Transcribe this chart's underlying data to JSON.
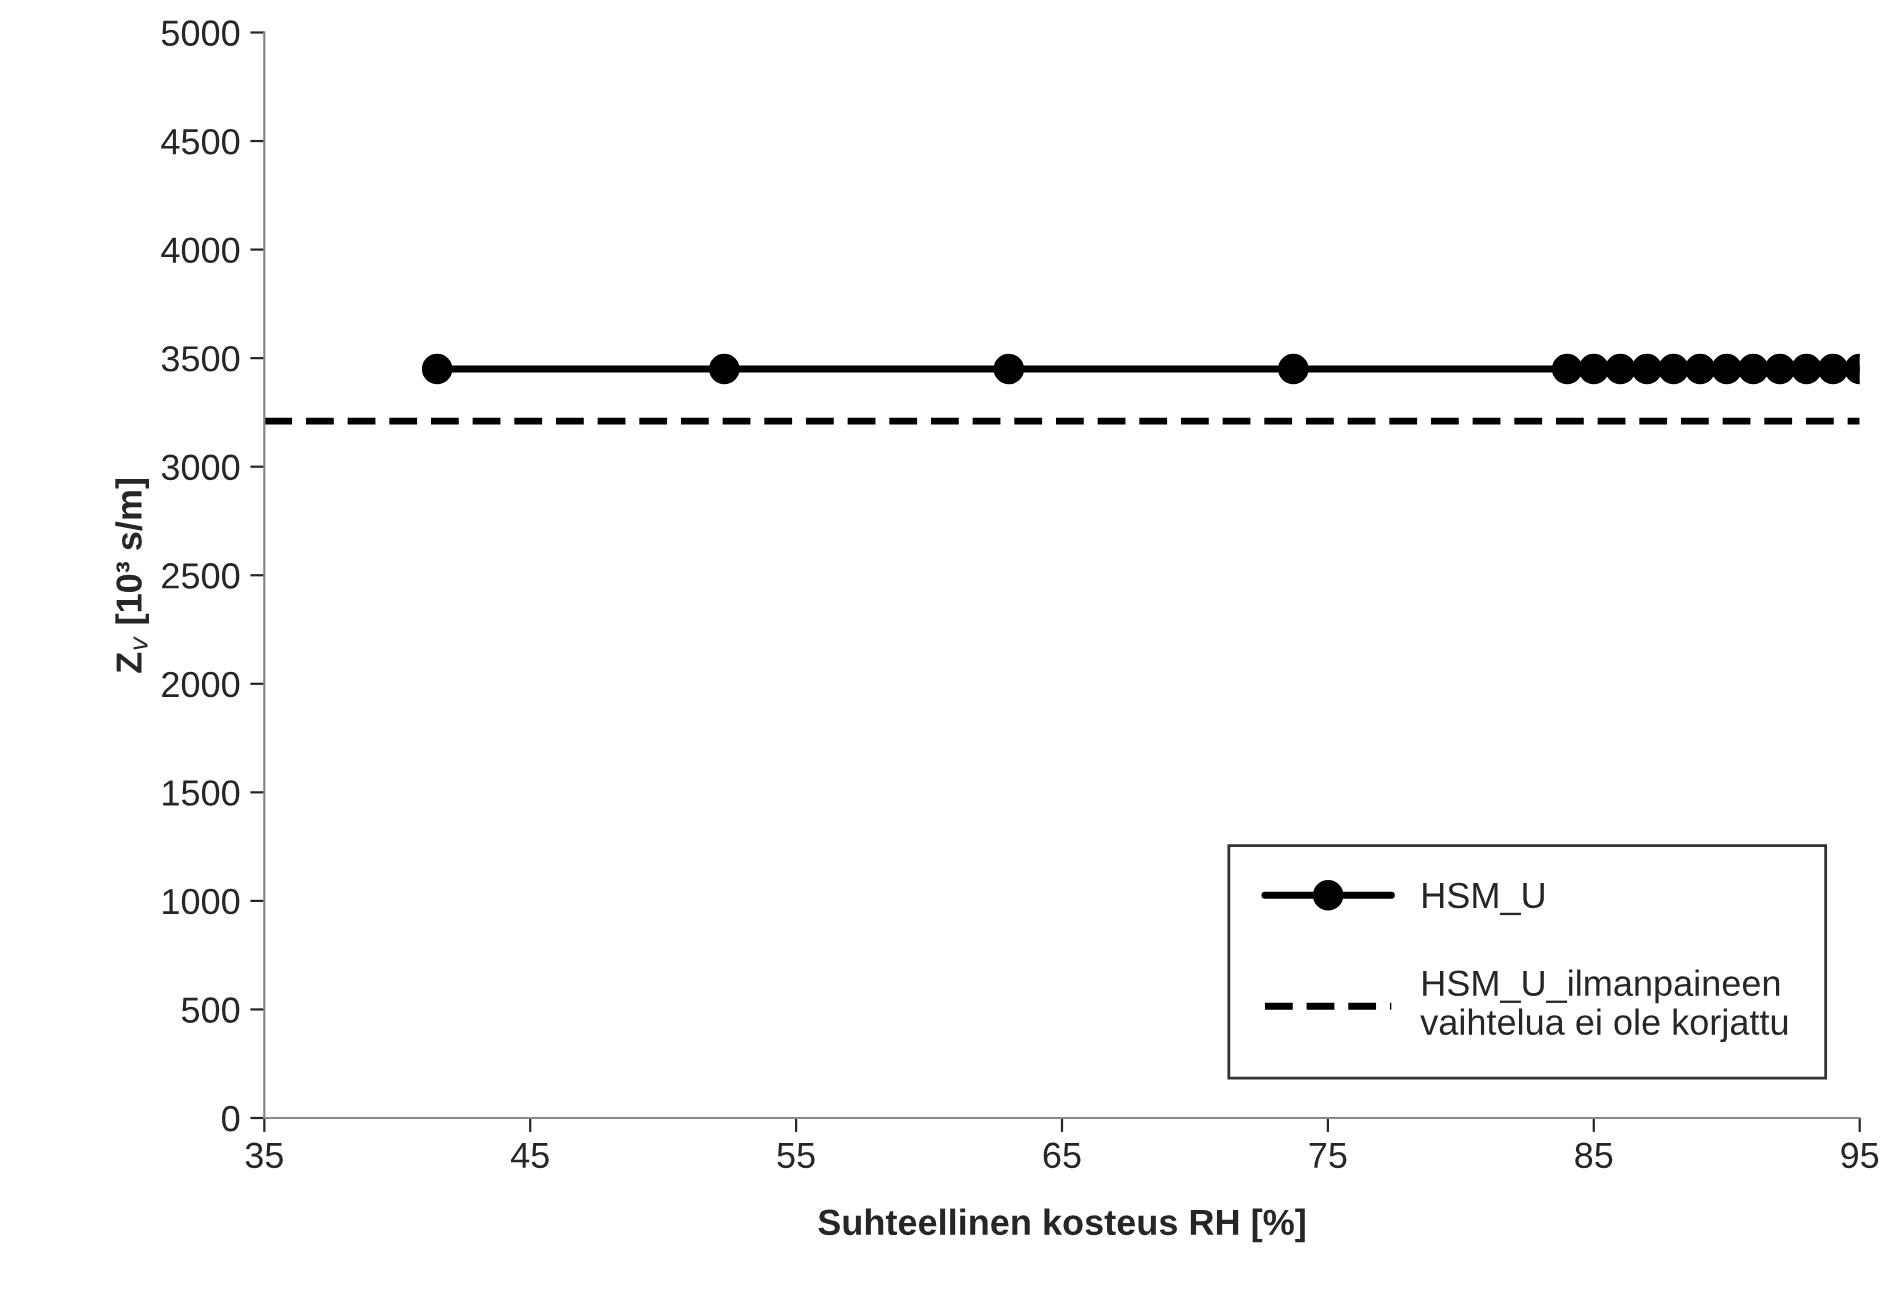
{
  "chart_data": {
    "type": "line",
    "xlabel": "Suhteellinen kosteus RH [%]",
    "ylabel": "Z$_{v}$ [10³ s/m]",
    "xlim": [
      35,
      95
    ],
    "xticks": [
      35,
      45,
      55,
      65,
      75,
      85,
      95
    ],
    "ylim": [
      0,
      5000
    ],
    "yticks": [
      0,
      500,
      1000,
      1500,
      2000,
      2500,
      3000,
      3500,
      4000,
      4500,
      5000
    ],
    "grid": false,
    "legend": "bottom right",
    "series": [
      {
        "name": "HSM_U",
        "color": "#000000",
        "marker": "circle",
        "line_style": "solid",
        "x": [
          41.5,
          52.3,
          63,
          73.7,
          84,
          85,
          86,
          87,
          88,
          89,
          90,
          91,
          92,
          93,
          94,
          95
        ],
        "values": [
          3450,
          3450,
          3450,
          3450,
          3450,
          3450,
          3450,
          3450,
          3450,
          3450,
          3450,
          3450,
          3450,
          3450,
          3450,
          3450
        ]
      },
      {
        "name": "HSM_U_ilmanpaineen\nvaihtelua ei ole korjattu",
        "color": "#000000",
        "marker": "none",
        "line_style": "dashed",
        "x": [
          35,
          95
        ],
        "values": [
          3210,
          3210
        ]
      }
    ]
  }
}
